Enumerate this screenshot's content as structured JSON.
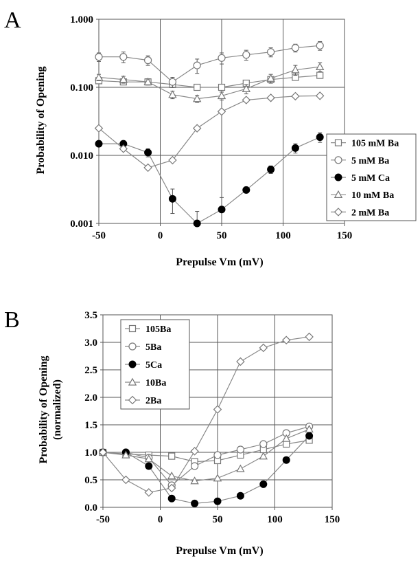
{
  "chart_data": [
    {
      "panel": "A",
      "type": "scatter",
      "yscale": "log",
      "xlabel": "Prepulse Vm (mV)",
      "ylabel": "Probability of Opening",
      "xlim": [
        -50,
        150
      ],
      "ylim": [
        0.001,
        1.0
      ],
      "xticks": [
        "-50",
        "0",
        "50",
        "100",
        "150"
      ],
      "yticks": [
        "0.001",
        "0.010",
        "0.100",
        "1.000"
      ],
      "ytick_values": [
        0.001,
        0.01,
        0.1,
        1.0
      ],
      "xtick_values": [
        -50,
        0,
        50,
        100,
        150
      ],
      "grid": true,
      "legend_position": "right",
      "series": [
        {
          "name": "105 mM Ba",
          "marker": "square",
          "x": [
            -50,
            -30,
            -10,
            10,
            30,
            50,
            70,
            90,
            110,
            130
          ],
          "y": [
            0.125,
            0.12,
            0.12,
            0.11,
            0.1,
            0.1,
            0.115,
            0.13,
            0.14,
            0.15
          ],
          "err": [
            0.01,
            0.01,
            0.01,
            0.01,
            0.004,
            0.004,
            0.008,
            0.01,
            0.012,
            0.015
          ]
        },
        {
          "name": "5 mM Ba",
          "marker": "circle",
          "x": [
            -50,
            -30,
            -10,
            10,
            30,
            50,
            70,
            90,
            110,
            130
          ],
          "y": [
            0.28,
            0.28,
            0.25,
            0.12,
            0.21,
            0.27,
            0.3,
            0.33,
            0.38,
            0.41
          ],
          "err": [
            0.04,
            0.05,
            0.04,
            0.02,
            0.05,
            0.05,
            0.05,
            0.05,
            0.05,
            0.06
          ]
        },
        {
          "name": "5 mM Ca",
          "marker": "filled-circle",
          "x": [
            -50,
            -30,
            -10,
            10,
            30,
            50,
            70,
            90,
            110,
            130
          ],
          "y": [
            0.0148,
            0.0148,
            0.011,
            0.0023,
            0.001,
            0.0016,
            0.0031,
            0.0062,
            0.0128,
            0.0185
          ],
          "err": [
            0,
            0.001,
            0.0015,
            0.0009,
            0.0005,
            0.0008,
            0,
            0.0008,
            0.002,
            0.003
          ]
        },
        {
          "name": "10 mM Ba",
          "marker": "triangle",
          "x": [
            -50,
            -30,
            -10,
            10,
            30,
            50,
            70,
            90,
            110,
            130
          ],
          "y": [
            0.14,
            0.13,
            0.12,
            0.078,
            0.068,
            0.075,
            0.095,
            0.135,
            0.18,
            0.2
          ],
          "err": [
            0.015,
            0.015,
            0.012,
            0.01,
            0.008,
            0.01,
            0.015,
            0.02,
            0.03,
            0.03
          ]
        },
        {
          "name": "2 mM Ba",
          "marker": "diamond",
          "x": [
            -50,
            -30,
            -10,
            10,
            30,
            50,
            70,
            90,
            110,
            130
          ],
          "y": [
            0.025,
            0.0125,
            0.0066,
            0.0085,
            0.025,
            0.044,
            0.065,
            0.07,
            0.074,
            0.075
          ],
          "err": [
            0,
            0,
            0,
            0,
            0,
            0,
            0,
            0,
            0,
            0
          ]
        }
      ]
    },
    {
      "panel": "B",
      "type": "scatter",
      "yscale": "linear",
      "xlabel": "Prepulse Vm (mV)",
      "ylabel": [
        "Probability of Opening",
        "(normalized)"
      ],
      "xlim": [
        -50,
        150
      ],
      "ylim": [
        0,
        3.5
      ],
      "xticks": [
        "-50",
        "0",
        "50",
        "100",
        "150"
      ],
      "yticks": [
        "0.0",
        "0.5",
        "1.0",
        "1.5",
        "2.0",
        "2.5",
        "3.0",
        "3.5"
      ],
      "ytick_values": [
        0,
        0.5,
        1.0,
        1.5,
        2.0,
        2.5,
        3.0,
        3.5
      ],
      "xtick_values": [
        -50,
        0,
        50,
        100,
        150
      ],
      "grid": true,
      "legend_position": "top-left",
      "series": [
        {
          "name": "105Ba",
          "marker": "square",
          "x": [
            -50,
            -30,
            -10,
            10,
            30,
            50,
            70,
            90,
            110,
            130
          ],
          "y": [
            1.0,
            0.97,
            0.95,
            0.93,
            0.83,
            0.85,
            0.95,
            1.05,
            1.15,
            1.22
          ]
        },
        {
          "name": "5Ba",
          "marker": "circle",
          "x": [
            -50,
            -30,
            -10,
            10,
            30,
            50,
            70,
            90,
            110,
            130
          ],
          "y": [
            1.0,
            1.0,
            0.9,
            0.4,
            0.75,
            0.95,
            1.05,
            1.15,
            1.35,
            1.47
          ]
        },
        {
          "name": "5Ca",
          "marker": "filled-circle",
          "x": [
            -50,
            -30,
            -10,
            10,
            30,
            50,
            70,
            90,
            110,
            130
          ],
          "y": [
            1.0,
            1.0,
            0.75,
            0.16,
            0.07,
            0.11,
            0.21,
            0.42,
            0.86,
            1.3
          ]
        },
        {
          "name": "10Ba",
          "marker": "triangle",
          "x": [
            -50,
            -30,
            -10,
            10,
            30,
            50,
            70,
            90,
            110,
            130
          ],
          "y": [
            1.0,
            0.95,
            0.88,
            0.57,
            0.48,
            0.53,
            0.7,
            0.93,
            1.25,
            1.42
          ]
        },
        {
          "name": "2Ba",
          "marker": "diamond",
          "x": [
            -50,
            -30,
            -10,
            10,
            30,
            50,
            70,
            90,
            110,
            130
          ],
          "y": [
            1.0,
            0.5,
            0.27,
            0.35,
            1.02,
            1.78,
            2.65,
            2.9,
            3.04,
            3.1
          ]
        }
      ]
    }
  ]
}
